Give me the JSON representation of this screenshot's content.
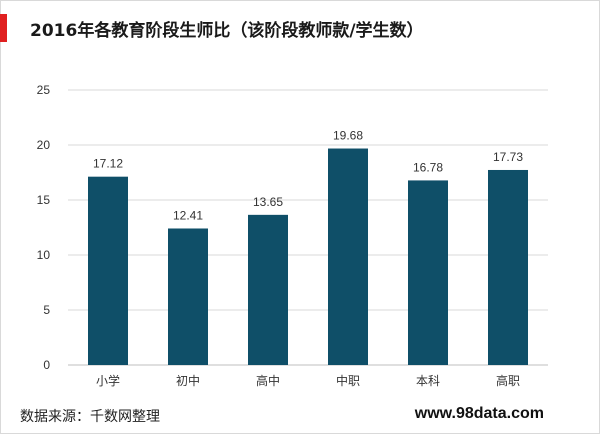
{
  "header": {
    "title": "2016年各教育阶段生师比（该阶段教师款/学生数）"
  },
  "footer": {
    "source": "数据来源：千数网整理",
    "website": "www.98data.com"
  },
  "colors": {
    "bar": "#0f4f68",
    "accent": "#e02020",
    "grid": "#d9d9d9"
  },
  "chart_data": {
    "type": "bar",
    "categories": [
      "小学",
      "初中",
      "高中",
      "中职",
      "本科",
      "高职"
    ],
    "values": [
      17.12,
      12.41,
      13.65,
      19.68,
      16.78,
      17.73
    ],
    "value_labels": [
      "17.12",
      "12.41",
      "13.65",
      "19.68",
      "16.78",
      "17.73"
    ],
    "ylim": [
      0,
      25
    ],
    "yticks": [
      "0",
      "5",
      "10",
      "15",
      "20",
      "25"
    ],
    "grid": true,
    "xlabel": "",
    "ylabel": ""
  }
}
